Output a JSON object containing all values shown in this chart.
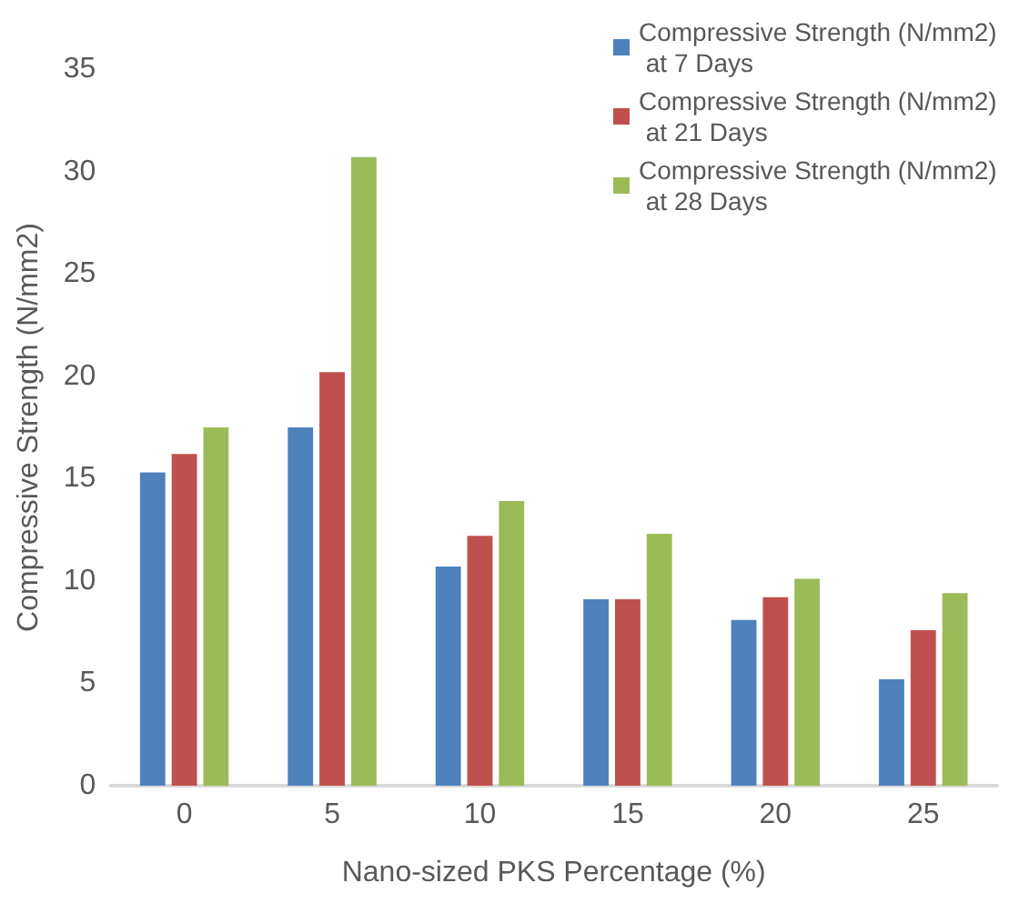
{
  "chart_data": {
    "type": "bar",
    "xlabel": "Nano-sized PKS Percentage (%)",
    "ylabel": "Compressive Strength (N/mm2)",
    "categories": [
      "0",
      "5",
      "10",
      "15",
      "20",
      "25"
    ],
    "series": [
      {
        "name": "Compressive Strength (N/mm2) at 7 Days",
        "color": "#4f81bd",
        "values": [
          15.3,
          17.5,
          10.7,
          9.1,
          8.1,
          5.2
        ]
      },
      {
        "name": "Compressive Strength (N/mm2) at 21 Days",
        "color": "#c0504d",
        "values": [
          16.2,
          20.2,
          12.2,
          9.1,
          9.2,
          7.6
        ]
      },
      {
        "name": "Compressive Strength (N/mm2) at 28 Days",
        "color": "#9bbb59",
        "values": [
          17.5,
          30.7,
          13.9,
          12.3,
          10.1,
          9.4
        ]
      }
    ],
    "ylim": [
      0,
      35
    ],
    "yticks": [
      0,
      5,
      10,
      15,
      20,
      25,
      30,
      35
    ],
    "grid": false,
    "legend": "top right"
  }
}
